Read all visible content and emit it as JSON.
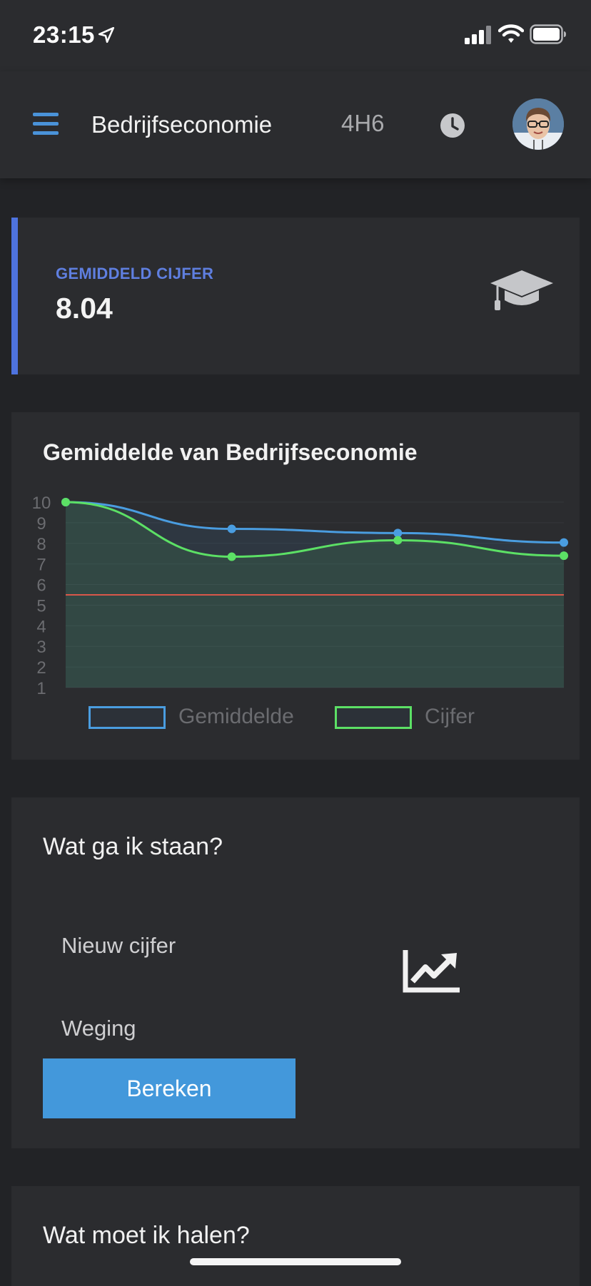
{
  "status_bar": {
    "time": "23:15"
  },
  "header": {
    "title": "Bedrijfseconomie",
    "class_code": "4H6",
    "icons": [
      "menu-icon",
      "clock-icon",
      "avatar"
    ]
  },
  "average_card": {
    "label": "GEMIDDELD CIJFER",
    "value": "8.04",
    "icon": "graduation-cap-icon",
    "accent_color": "#4e73df"
  },
  "chart_card": {
    "title": "Gemiddelde van Bedrijfseconomie"
  },
  "chart_data": {
    "type": "line",
    "title": "Gemiddelde van Bedrijfseconomie",
    "y_ticks": [
      "1",
      "2",
      "3",
      "4",
      "5",
      "6",
      "7",
      "8",
      "9",
      "10"
    ],
    "ylim": [
      1,
      10
    ],
    "x": [
      1,
      2,
      3,
      4
    ],
    "series": [
      {
        "name": "Gemiddelde",
        "color": "#4a9de0",
        "values": [
          10,
          8.7,
          8.5,
          8.04
        ]
      },
      {
        "name": "Cijfer",
        "color": "#5ce065",
        "values": [
          10,
          7.35,
          8.15,
          7.4
        ]
      }
    ],
    "threshold": {
      "value": 5.5,
      "color": "#d9574a"
    },
    "grid": true,
    "legend_position": "bottom"
  },
  "calculator": {
    "title": "Wat ga ik staan?",
    "new_grade_placeholder": "Nieuw cijfer",
    "weight_placeholder": "Weging",
    "button_label": "Bereken",
    "icon": "trend-up-icon"
  },
  "target_card": {
    "title": "Wat moet ik halen?"
  },
  "colors": {
    "background": "#222326",
    "card": "#2b2c2f",
    "primary": "#4398db"
  }
}
